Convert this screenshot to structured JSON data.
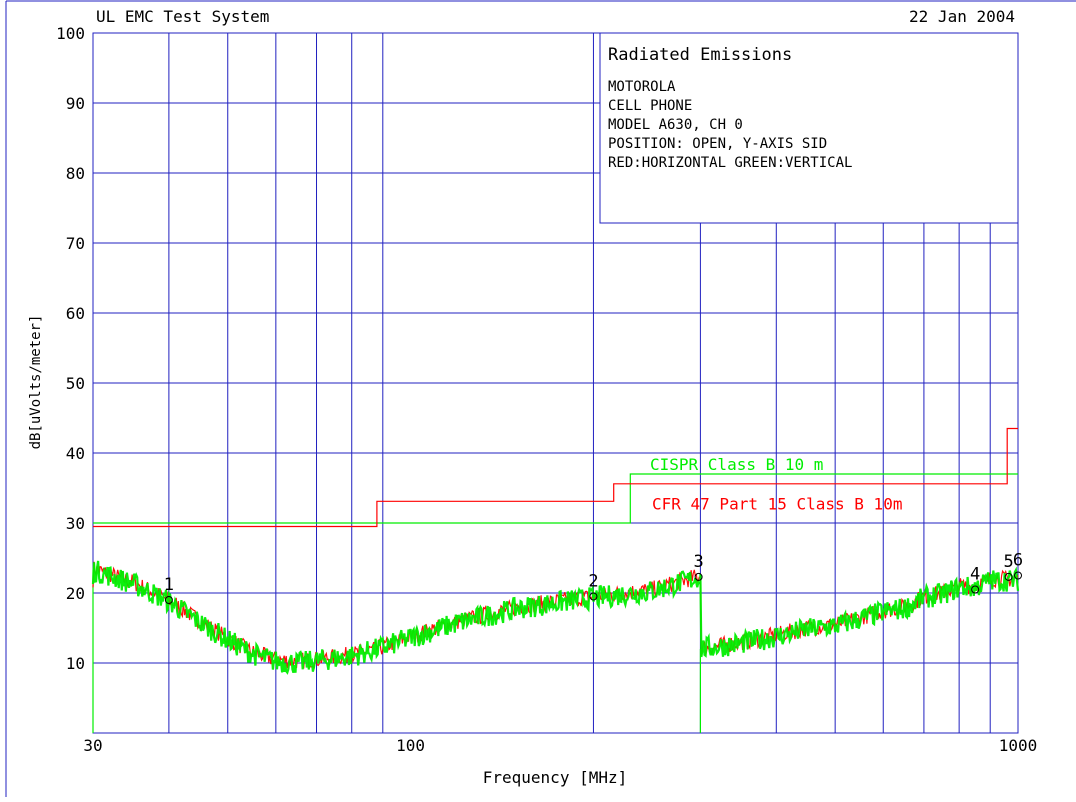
{
  "header": {
    "system_name": "UL EMC Test System",
    "date": "22 Jan 2004"
  },
  "info_box": {
    "title": "Radiated Emissions",
    "lines": [
      "MOTOROLA",
      "CELL PHONE",
      "MODEL A630, CH 0",
      "POSITION: OPEN,  Y-AXIS SID",
      "RED:HORIZONTAL GREEN:VERTICAL"
    ]
  },
  "colors": {
    "grid": "#2020c0",
    "text": "#000000",
    "horizontal": "#ff0000",
    "vertical": "#00ee00",
    "background": "#ffffff"
  },
  "chart_data": {
    "type": "line",
    "title": "Radiated Emissions",
    "xlabel": "Frequency [MHz]",
    "ylabel": "dB[uVolts/meter]",
    "x_scale": "log",
    "xlim": [
      30,
      1000
    ],
    "ylim": [
      0,
      100
    ],
    "x_tick_labels": [
      {
        "value": 30,
        "label": "30"
      },
      {
        "value": 100,
        "label": "100"
      },
      {
        "value": 1000,
        "label": "1000"
      }
    ],
    "x_minor_grid": [
      40,
      50,
      60,
      70,
      80,
      90,
      200,
      300,
      400,
      500,
      600,
      700,
      800,
      900
    ],
    "y_ticks": [
      10,
      20,
      30,
      40,
      50,
      60,
      70,
      80,
      90,
      100
    ],
    "grid": true,
    "limit_lines": [
      {
        "name": "CISPR Class B 10 m",
        "color": "#00ee00",
        "points": [
          [
            30,
            30
          ],
          [
            230,
            30
          ],
          [
            230,
            37
          ],
          [
            1000,
            37
          ]
        ]
      },
      {
        "name": "CFR 47 Part 15  Class B 10m",
        "color": "#ff0000",
        "points": [
          [
            30,
            29.5
          ],
          [
            88,
            29.5
          ],
          [
            88,
            33.1
          ],
          [
            216,
            33.1
          ],
          [
            216,
            35.6
          ],
          [
            960,
            35.6
          ],
          [
            960,
            43.5
          ],
          [
            1000,
            43.5
          ]
        ]
      }
    ],
    "series": [
      {
        "name": "HORIZONTAL",
        "color": "#ff0000",
        "points": [
          [
            30,
            23.5
          ],
          [
            35,
            21.5
          ],
          [
            40,
            19
          ],
          [
            45,
            16
          ],
          [
            50,
            13.5
          ],
          [
            55,
            11.5
          ],
          [
            60,
            10.5
          ],
          [
            65,
            10.3
          ],
          [
            70,
            10.5
          ],
          [
            80,
            11.2
          ],
          [
            90,
            12.3
          ],
          [
            100,
            13.8
          ],
          [
            120,
            16
          ],
          [
            150,
            18
          ],
          [
            180,
            19
          ],
          [
            200,
            19.5
          ],
          [
            250,
            20.5
          ],
          [
            300,
            22.5
          ],
          [
            300.5,
            12
          ],
          [
            350,
            13
          ],
          [
            400,
            14
          ],
          [
            450,
            15
          ],
          [
            500,
            15.5
          ],
          [
            550,
            16.5
          ],
          [
            600,
            17.5
          ],
          [
            650,
            18
          ],
          [
            700,
            19.5
          ],
          [
            750,
            20
          ],
          [
            800,
            21
          ],
          [
            850,
            21
          ],
          [
            900,
            22
          ],
          [
            950,
            22
          ],
          [
            1000,
            22
          ]
        ]
      },
      {
        "name": "VERTICAL",
        "color": "#00ee00",
        "points": [
          [
            30,
            23.3
          ],
          [
            35,
            21.3
          ],
          [
            40,
            18.8
          ],
          [
            45,
            15.8
          ],
          [
            50,
            13.3
          ],
          [
            55,
            11.3
          ],
          [
            60,
            10.2
          ],
          [
            65,
            10
          ],
          [
            70,
            10.3
          ],
          [
            80,
            11
          ],
          [
            90,
            12.2
          ],
          [
            100,
            13.6
          ],
          [
            120,
            15.8
          ],
          [
            150,
            17.8
          ],
          [
            180,
            18.8
          ],
          [
            200,
            19.3
          ],
          [
            250,
            20.3
          ],
          [
            300,
            22.3
          ],
          [
            300.5,
            12
          ],
          [
            350,
            12.8
          ],
          [
            400,
            13.8
          ],
          [
            450,
            14.8
          ],
          [
            500,
            15.3
          ],
          [
            550,
            16.3
          ],
          [
            600,
            17.3
          ],
          [
            650,
            17.8
          ],
          [
            700,
            19.3
          ],
          [
            750,
            19.8
          ],
          [
            800,
            20.8
          ],
          [
            850,
            20.8
          ],
          [
            900,
            21.8
          ],
          [
            950,
            21.8
          ],
          [
            1000,
            21.8
          ]
        ]
      }
    ],
    "markers": [
      {
        "label": "1",
        "x": 40,
        "y": 19
      },
      {
        "label": "2",
        "x": 200,
        "y": 19.5
      },
      {
        "label": "3",
        "x": 298,
        "y": 22.3
      },
      {
        "label": "4",
        "x": 850,
        "y": 20.5
      },
      {
        "label": "5",
        "x": 965,
        "y": 22.3
      },
      {
        "label": "6",
        "x": 1000,
        "y": 22.5
      }
    ],
    "vertical_trace_edges": [
      {
        "color": "#00ee00",
        "x": 30,
        "y_from": 0,
        "y_to": 23.3
      },
      {
        "color": "#00ee00",
        "x": 300,
        "y_from": 0,
        "y_to": 12
      }
    ]
  }
}
